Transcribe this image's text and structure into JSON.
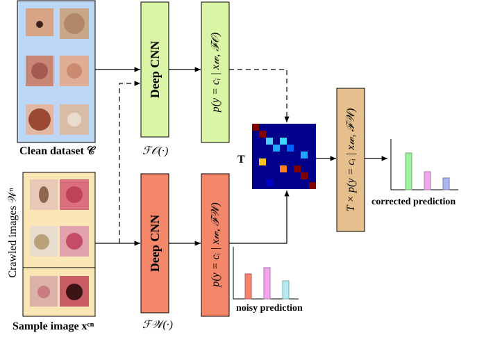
{
  "clean_dataset": {
    "label": "Clean dataset 𝒞"
  },
  "crawled": {
    "label": "Crawled images 𝒲ⁿ",
    "sample_label": "Sample image xᶜⁿ"
  },
  "clean_branch": {
    "cnn": "Deep CNN",
    "function": "ℱ𝒪(·)",
    "output": "p(y = cᵢ | x𝓌, ℱ𝒪)"
  },
  "noisy_branch": {
    "cnn": "Deep CNN",
    "function": "ℱ𝒲(·)",
    "output": "p(y = cᵢ | x𝓌, ℱ𝒲)"
  },
  "matrix": {
    "label": "T"
  },
  "corrected": {
    "formula": "T × p(y = cᵢ | x𝓌, ℱ𝒲)",
    "label": "corrected prediction"
  },
  "noisy": {
    "label": "noisy prediction"
  }
}
